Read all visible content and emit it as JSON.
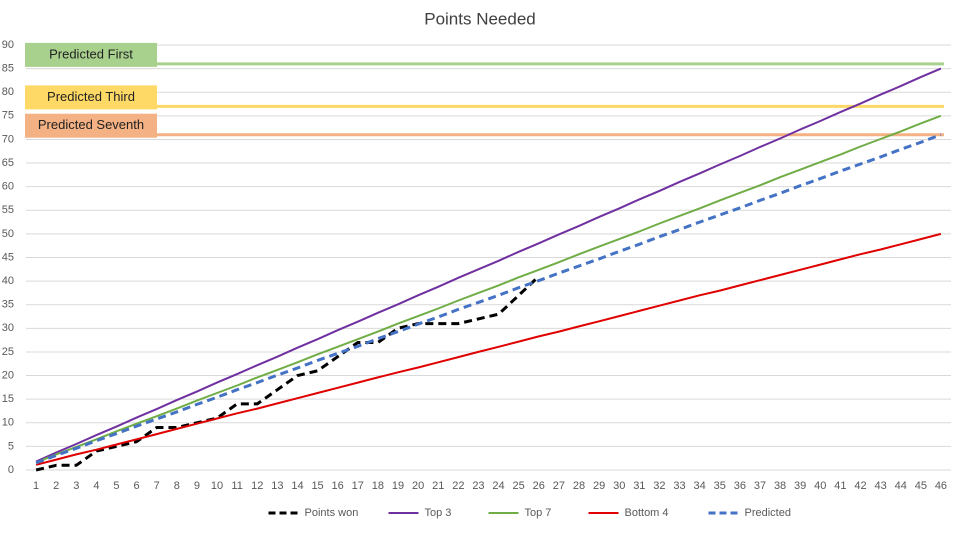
{
  "chart_data": {
    "type": "line",
    "title": "Points Needed",
    "categories": [
      "1",
      "2",
      "3",
      "4",
      "5",
      "6",
      "7",
      "8",
      "9",
      "10",
      "11",
      "12",
      "13",
      "14",
      "15",
      "16",
      "17",
      "18",
      "19",
      "20",
      "21",
      "22",
      "23",
      "24",
      "25",
      "26",
      "27",
      "28",
      "29",
      "30",
      "31",
      "32",
      "33",
      "34",
      "35",
      "36",
      "37",
      "38",
      "39",
      "40",
      "41",
      "42",
      "43",
      "44",
      "45",
      "46"
    ],
    "ylim": [
      0,
      90
    ],
    "yticks": [
      0,
      5,
      10,
      15,
      20,
      25,
      30,
      35,
      40,
      45,
      50,
      55,
      60,
      65,
      70,
      75,
      80,
      85,
      90
    ],
    "grid": true,
    "legend": "bottom",
    "series": [
      {
        "name": "Points won",
        "color": "#000000",
        "dashed": true,
        "values": [
          0,
          1,
          1,
          4,
          5,
          6,
          9,
          9,
          10,
          11,
          14,
          14,
          17,
          20,
          21,
          24,
          27,
          27,
          30,
          31,
          31,
          31,
          32,
          33,
          37,
          41,
          null,
          null,
          null,
          null,
          null,
          null,
          null,
          null,
          null,
          null,
          null,
          null,
          null,
          null,
          null,
          null,
          null,
          null,
          null,
          null
        ]
      },
      {
        "name": "Top 3",
        "color": "#7030a0",
        "dashed": false,
        "values": [
          1.8,
          3.7,
          5.5,
          7.4,
          9.2,
          11.1,
          12.9,
          14.8,
          16.6,
          18.5,
          20.3,
          22.2,
          24.0,
          25.9,
          27.7,
          29.6,
          31.4,
          33.3,
          35.1,
          37.0,
          38.8,
          40.7,
          42.5,
          44.3,
          46.2,
          48.0,
          49.9,
          51.7,
          53.6,
          55.4,
          57.3,
          59.1,
          61.0,
          62.8,
          64.7,
          66.5,
          68.4,
          70.2,
          72.1,
          73.9,
          75.8,
          77.6,
          79.5,
          81.3,
          83.2,
          85.0
        ]
      },
      {
        "name": "Top 7",
        "color": "#70ad47",
        "dashed": false,
        "values": [
          1.6,
          3.3,
          4.9,
          6.5,
          8.2,
          9.8,
          11.4,
          13.0,
          14.7,
          16.3,
          17.9,
          19.6,
          21.2,
          22.8,
          24.5,
          26.1,
          27.7,
          29.3,
          31.0,
          32.6,
          34.2,
          35.9,
          37.5,
          39.1,
          40.8,
          42.4,
          44.0,
          45.7,
          47.3,
          48.9,
          50.5,
          52.2,
          53.8,
          55.4,
          57.1,
          58.7,
          60.3,
          62.0,
          63.6,
          65.2,
          66.8,
          68.5,
          70.1,
          71.7,
          73.4,
          75.0
        ]
      },
      {
        "name": "Bottom 4",
        "color": "#e00000",
        "dashed": false,
        "values": [
          1.1,
          2.2,
          3.3,
          4.3,
          5.4,
          6.5,
          7.6,
          8.7,
          9.8,
          10.9,
          12.0,
          13.0,
          14.1,
          15.2,
          16.3,
          17.4,
          18.5,
          19.6,
          20.7,
          21.7,
          22.8,
          23.9,
          25.0,
          26.1,
          27.2,
          28.3,
          29.3,
          30.4,
          31.5,
          32.6,
          33.7,
          34.8,
          35.9,
          37.0,
          38.0,
          39.1,
          40.2,
          41.3,
          42.4,
          43.5,
          44.6,
          45.7,
          46.7,
          47.8,
          48.9,
          50.0
        ]
      },
      {
        "name": "Predicted",
        "color": "#4472c4",
        "dashed": true,
        "values": [
          1.5,
          3.1,
          4.6,
          6.2,
          7.7,
          9.3,
          10.8,
          12.3,
          13.9,
          15.4,
          17.0,
          18.5,
          20.1,
          21.6,
          23.2,
          24.7,
          26.2,
          27.8,
          29.3,
          30.9,
          32.4,
          34.0,
          35.5,
          37.0,
          38.6,
          40.1,
          41.7,
          43.2,
          44.7,
          46.3,
          47.8,
          49.4,
          50.9,
          52.5,
          54.0,
          55.5,
          57.1,
          58.6,
          60.2,
          61.7,
          63.3,
          64.8,
          66.3,
          67.9,
          69.4,
          71.0
        ]
      }
    ],
    "reference_lines": [
      {
        "label": "Predicted First",
        "value": 86,
        "color": "#a9d18e"
      },
      {
        "label": "Predicted Third",
        "value": 77,
        "color": "#ffd966"
      },
      {
        "label": "Predicted Seventh",
        "value": 71,
        "color": "#f4b183"
      }
    ]
  }
}
